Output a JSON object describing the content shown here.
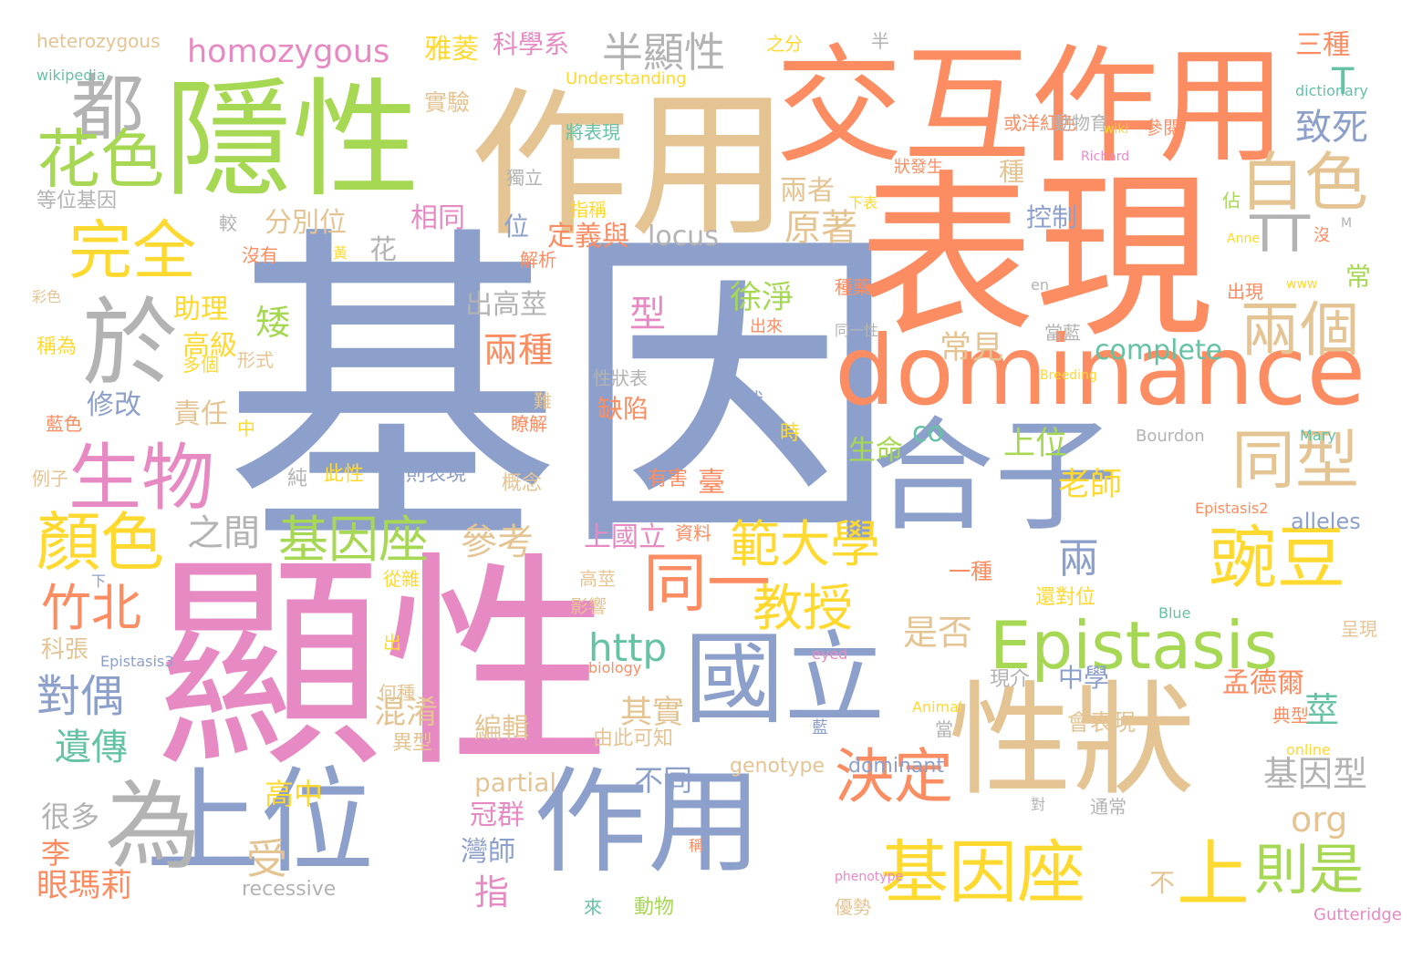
{
  "palette": {
    "blue": "#8da0cb",
    "orange": "#fc8d62",
    "green": "#a6d854",
    "pink": "#e78ac3",
    "yellow": "#ffd92f",
    "tan": "#e5c494",
    "gray": "#b3b3b3",
    "teal": "#66c2a5"
  },
  "words": [
    {
      "text": "基因",
      "color": "blue"
    },
    {
      "text": "顯性",
      "color": "pink"
    },
    {
      "text": "表現",
      "color": "orange"
    },
    {
      "text": "作用",
      "color": "tan"
    },
    {
      "text": "交互作用",
      "color": "orange"
    },
    {
      "text": "隱性",
      "color": "green"
    },
    {
      "text": "合子",
      "color": "blue"
    },
    {
      "text": "dominance",
      "color": "orange"
    },
    {
      "text": "性狀",
      "color": "tan"
    },
    {
      "text": "作用",
      "color": "blue"
    },
    {
      "text": "上位",
      "color": "blue"
    },
    {
      "text": "國立",
      "color": "blue"
    },
    {
      "text": "Epistasis",
      "color": "green"
    },
    {
      "text": "為",
      "color": "gray"
    },
    {
      "text": "於",
      "color": "gray"
    },
    {
      "text": "都",
      "color": "gray"
    },
    {
      "text": "生物",
      "color": "pink"
    },
    {
      "text": "花色",
      "color": "green"
    },
    {
      "text": "完全",
      "color": "yellow"
    },
    {
      "text": "白色",
      "color": "tan"
    },
    {
      "text": "TT",
      "color": "gray"
    },
    {
      "text": "兩個",
      "color": "tan"
    },
    {
      "text": "同型",
      "color": "tan"
    },
    {
      "text": "豌豆",
      "color": "yellow"
    },
    {
      "text": "基因座",
      "color": "yellow"
    },
    {
      "text": "上",
      "color": "yellow"
    },
    {
      "text": "則是",
      "color": "green"
    },
    {
      "text": "決定",
      "color": "orange"
    },
    {
      "text": "同一",
      "color": "orange"
    },
    {
      "text": "範大學",
      "color": "yellow"
    },
    {
      "text": "教授",
      "color": "yellow"
    },
    {
      "text": "顏色",
      "color": "yellow"
    },
    {
      "text": "竹北",
      "color": "orange"
    },
    {
      "text": "基因座",
      "color": "green"
    },
    {
      "text": "homozygous",
      "color": "pink"
    },
    {
      "text": "半顯性",
      "color": "gray"
    },
    {
      "text": "雅菱",
      "color": "yellow"
    },
    {
      "text": "科學系",
      "color": "pink"
    },
    {
      "text": "對偶",
      "color": "blue"
    },
    {
      "text": "遺傳",
      "color": "teal"
    },
    {
      "text": "眼瑪莉",
      "color": "orange"
    },
    {
      "text": "受",
      "color": "tan"
    },
    {
      "text": "參考",
      "color": "tan"
    },
    {
      "text": "之間",
      "color": "gray"
    },
    {
      "text": "矮",
      "color": "green"
    },
    {
      "text": "兩種",
      "color": "orange"
    },
    {
      "text": "兩",
      "color": "blue"
    },
    {
      "text": "是否",
      "color": "tan"
    },
    {
      "text": "http",
      "color": "teal"
    },
    {
      "text": "莖",
      "color": "teal"
    },
    {
      "text": "原著",
      "color": "tan"
    },
    {
      "text": "locus",
      "color": "gray"
    },
    {
      "text": "complete",
      "color": "teal"
    },
    {
      "text": "基因型",
      "color": "gray"
    },
    {
      "text": "org",
      "color": "tan"
    },
    {
      "text": "alleles",
      "color": "blue"
    },
    {
      "text": "致死",
      "color": "blue"
    },
    {
      "text": "T",
      "color": "teal"
    },
    {
      "text": "型",
      "color": "pink"
    },
    {
      "text": "徐淨",
      "color": "green"
    },
    {
      "text": "上位",
      "color": "green"
    },
    {
      "text": "老師",
      "color": "yellow"
    },
    {
      "text": "常見",
      "color": "tan"
    },
    {
      "text": "生命",
      "color": "green"
    },
    {
      "text": "co",
      "color": "teal"
    },
    {
      "text": "臺",
      "color": "orange"
    },
    {
      "text": "中學",
      "color": "blue"
    },
    {
      "text": "孟德爾",
      "color": "orange"
    },
    {
      "text": "其實",
      "color": "tan"
    },
    {
      "text": "編輯",
      "color": "tan"
    },
    {
      "text": "混淆",
      "color": "tan"
    },
    {
      "text": "partial",
      "color": "tan"
    },
    {
      "text": "冠群",
      "color": "pink"
    },
    {
      "text": "灣師",
      "color": "blue"
    },
    {
      "text": "指",
      "color": "pink"
    },
    {
      "text": "不同",
      "color": "blue"
    },
    {
      "text": "dominant",
      "color": "blue"
    },
    {
      "text": "genotype",
      "color": "tan"
    },
    {
      "text": "高中",
      "color": "yellow"
    },
    {
      "text": "很多",
      "color": "gray"
    },
    {
      "text": "李",
      "color": "orange"
    },
    {
      "text": "recessive",
      "color": "gray"
    },
    {
      "text": "助理",
      "color": "yellow"
    },
    {
      "text": "高級",
      "color": "yellow"
    },
    {
      "text": "修改",
      "color": "blue"
    },
    {
      "text": "責任",
      "color": "tan"
    },
    {
      "text": "分別位",
      "color": "tan"
    },
    {
      "text": "相同",
      "color": "pink"
    },
    {
      "text": "花",
      "color": "gray"
    },
    {
      "text": "出高莖",
      "color": "gray"
    },
    {
      "text": "兩者",
      "color": "tan"
    },
    {
      "text": "控制",
      "color": "blue"
    },
    {
      "text": "定義與",
      "color": "orange"
    },
    {
      "text": "位",
      "color": "blue"
    },
    {
      "text": "實驗",
      "color": "tan"
    },
    {
      "text": "三種",
      "color": "orange"
    },
    {
      "text": "上國立",
      "color": "pink"
    },
    {
      "text": "科張",
      "color": "tan"
    },
    {
      "text": "不",
      "color": "tan"
    },
    {
      "text": "種",
      "color": "tan"
    },
    {
      "text": "常",
      "color": "green"
    },
    {
      "text": "heterozygous",
      "color": "tan"
    },
    {
      "text": "之分",
      "color": "yellow"
    },
    {
      "text": "半",
      "color": "gray"
    },
    {
      "text": "等位基因",
      "color": "gray"
    },
    {
      "text": "稱為",
      "color": "yellow"
    },
    {
      "text": "例子",
      "color": "tan"
    },
    {
      "text": "一種",
      "color": "orange"
    },
    {
      "text": "還對位",
      "color": "yellow"
    },
    {
      "text": "呈現",
      "color": "tan"
    },
    {
      "text": "出現",
      "color": "orange"
    },
    {
      "text": "現介",
      "color": "gray"
    },
    {
      "text": "會表現",
      "color": "tan"
    },
    {
      "text": "典型",
      "color": "orange"
    },
    {
      "text": "異型",
      "color": "tan"
    },
    {
      "text": "何種",
      "color": "tan"
    },
    {
      "text": "由此可知",
      "color": "tan"
    },
    {
      "text": "缺陷",
      "color": "orange"
    },
    {
      "text": "狀",
      "color": "blue"
    },
    {
      "text": "時",
      "color": "yellow"
    },
    {
      "text": "性狀表",
      "color": "gray"
    },
    {
      "text": "出",
      "color": "yellow"
    },
    {
      "text": "有害",
      "color": "orange"
    },
    {
      "text": "概念",
      "color": "tan"
    },
    {
      "text": "則表現",
      "color": "blue"
    },
    {
      "text": "此性",
      "color": "yellow"
    },
    {
      "text": "純",
      "color": "gray"
    },
    {
      "text": "難",
      "color": "tan"
    },
    {
      "text": "瞭解",
      "color": "orange"
    },
    {
      "text": "資料",
      "color": "orange"
    },
    {
      "text": "高莖",
      "color": "tan"
    },
    {
      "text": "影響",
      "color": "tan"
    },
    {
      "text": "從雜",
      "color": "yellow"
    },
    {
      "text": "動物",
      "color": "green"
    },
    {
      "text": "來",
      "color": "teal"
    },
    {
      "text": "稱",
      "color": "orange"
    },
    {
      "text": "對",
      "color": "gray"
    },
    {
      "text": "通常",
      "color": "gray"
    },
    {
      "text": "優勢",
      "color": "tan"
    },
    {
      "text": "當",
      "color": "gray"
    },
    {
      "text": "藍",
      "color": "blue"
    },
    {
      "text": "中",
      "color": "yellow"
    },
    {
      "text": "藍色",
      "color": "orange"
    },
    {
      "text": "多個",
      "color": "yellow"
    },
    {
      "text": "形式",
      "color": "tan"
    },
    {
      "text": "彩色",
      "color": "tan"
    },
    {
      "text": "沒有",
      "color": "orange"
    },
    {
      "text": "較",
      "color": "gray"
    },
    {
      "text": "黃",
      "color": "yellow"
    },
    {
      "text": "解析",
      "color": "orange"
    },
    {
      "text": "獨立",
      "color": "gray"
    },
    {
      "text": "指稱",
      "color": "yellow"
    },
    {
      "text": "將表現",
      "color": "teal"
    },
    {
      "text": "或洋紅色",
      "color": "orange"
    },
    {
      "text": "動物育",
      "color": "gray"
    },
    {
      "text": "狀發生",
      "color": "orange"
    },
    {
      "text": "參閱",
      "color": "orange"
    },
    {
      "text": "佔",
      "color": "green"
    },
    {
      "text": "沒",
      "color": "orange"
    },
    {
      "text": "同一性",
      "color": "gray"
    },
    {
      "text": "種藥",
      "color": "orange"
    },
    {
      "text": "當藍",
      "color": "gray"
    },
    {
      "text": "出來",
      "color": "orange"
    },
    {
      "text": "下表",
      "color": "yellow"
    },
    {
      "text": "Understanding",
      "color": "yellow"
    },
    {
      "text": "dictionary",
      "color": "teal"
    },
    {
      "text": "wiki",
      "color": "yellow"
    },
    {
      "text": "Richard",
      "color": "pink"
    },
    {
      "text": "Anne",
      "color": "yellow"
    },
    {
      "text": "en",
      "color": "gray"
    },
    {
      "text": "www",
      "color": "yellow"
    },
    {
      "text": "Breeding",
      "color": "yellow"
    },
    {
      "text": "Bourdon",
      "color": "gray"
    },
    {
      "text": "Mary",
      "color": "teal"
    },
    {
      "text": "Epistasis2",
      "color": "orange"
    },
    {
      "text": "Blue",
      "color": "teal"
    },
    {
      "text": "Epistasis3",
      "color": "blue"
    },
    {
      "text": "eyed",
      "color": "pink"
    },
    {
      "text": "biology",
      "color": "orange"
    },
    {
      "text": "Animal",
      "color": "yellow"
    },
    {
      "text": "online",
      "color": "yellow"
    },
    {
      "text": "phenotype",
      "color": "pink"
    },
    {
      "text": "Gutteridge",
      "color": "pink"
    },
    {
      "text": "wikipedia",
      "color": "teal"
    },
    {
      "text": "下",
      "color": "blue"
    },
    {
      "text": "M",
      "color": "gray"
    },
    {
      "text": "C",
      "color": "yellow"
    }
  ]
}
